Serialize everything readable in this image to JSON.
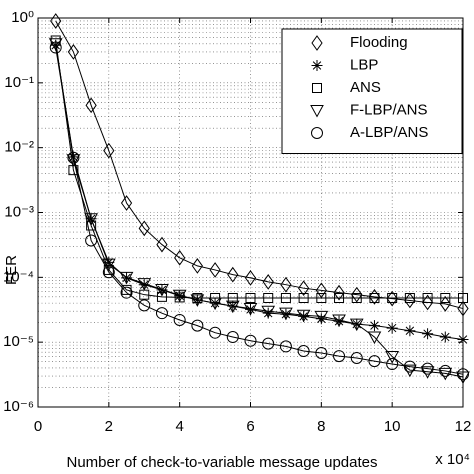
{
  "chart_data": {
    "type": "line",
    "x_label": "Number of check-to-variable message updates",
    "x_multiplier": "x 10⁴",
    "y_label": "FER",
    "x": [
      0.5,
      1,
      1.5,
      2,
      2.5,
      3,
      3.5,
      4,
      4.5,
      5,
      5.5,
      6,
      6.5,
      7,
      7.5,
      8,
      8.5,
      9,
      9.5,
      10,
      10.5,
      11,
      11.5,
      12
    ],
    "series": [
      {
        "name": "Flooding",
        "color": "#000000",
        "marker": "diamond",
        "values": [
          0.9,
          0.3,
          0.045,
          0.009,
          0.0014,
          0.00057,
          0.00032,
          0.0002,
          0.00015,
          0.00013,
          0.00011,
          9.8e-05,
          8.5e-05,
          7.7e-05,
          6.8e-05,
          6.3e-05,
          5.8e-05,
          5.4e-05,
          5e-05,
          4.7e-05,
          4.4e-05,
          4.1e-05,
          3.9e-05,
          3.3e-05
        ]
      },
      {
        "name": "LBP",
        "color": "#000000",
        "marker": "star",
        "values": [
          0.38,
          0.0072,
          0.0008,
          0.00017,
          9.8e-05,
          7.7e-05,
          6.4e-05,
          5.2e-05,
          4.5e-05,
          4e-05,
          3.6e-05,
          3.2e-05,
          2.8e-05,
          2.7e-05,
          2.5e-05,
          2.3e-05,
          2.1e-05,
          1.9e-05,
          1.8e-05,
          1.65e-05,
          1.5e-05,
          1.35e-05,
          1.2e-05,
          1.1e-05
        ]
      },
      {
        "name": "ANS",
        "color": "#000000",
        "marker": "square",
        "values": [
          0.45,
          0.0045,
          0.00063,
          0.00013,
          6.4e-05,
          5.4e-05,
          5e-05,
          4.9e-05,
          4.8e-05,
          4.8e-05,
          4.8e-05,
          4.8e-05,
          4.8e-05,
          4.8e-05,
          4.8e-05,
          4.8e-05,
          4.8e-05,
          4.8e-05,
          4.8e-05,
          4.8e-05,
          4.8e-05,
          4.8e-05,
          4.8e-05,
          4.8e-05
        ]
      },
      {
        "name": "F-LBP/ANS",
        "color": "#000000",
        "marker": "triangle-down",
        "values": [
          0.4,
          0.0065,
          0.0008,
          0.00016,
          0.0001,
          8e-05,
          6.5e-05,
          5.3e-05,
          4.5e-05,
          4e-05,
          3.6e-05,
          3.3e-05,
          3e-05,
          2.8e-05,
          2.6e-05,
          2.5e-05,
          2.2e-05,
          1.9e-05,
          1.2e-05,
          6e-06,
          3.7e-06,
          3.5e-06,
          3.3e-06,
          2.9e-06
        ]
      },
      {
        "name": "A-LBP/ANS",
        "color": "#000000",
        "marker": "circle",
        "values": [
          0.35,
          0.007,
          0.00037,
          0.00012,
          5.8e-05,
          3.7e-05,
          2.8e-05,
          2.2e-05,
          1.8e-05,
          1.4e-05,
          1.2e-05,
          1.05e-05,
          9.5e-06,
          8.6e-06,
          7.3e-06,
          6.8e-06,
          6.1e-06,
          5.7e-06,
          5.1e-06,
          4.6e-06,
          4.2e-06,
          3.9e-06,
          3.6e-06,
          3.2e-06
        ]
      }
    ],
    "xlim": [
      0,
      12
    ],
    "xticks": [
      0,
      2,
      4,
      6,
      8,
      10,
      12
    ],
    "ylim": [
      1e-06,
      1
    ],
    "yticks": [
      {
        "value": 1e-06,
        "label": "10⁻⁶"
      },
      {
        "value": 1e-05,
        "label": "10⁻⁵"
      },
      {
        "value": 0.0001,
        "label": "10⁻⁴"
      },
      {
        "value": 0.001,
        "label": "10⁻³"
      },
      {
        "value": 0.01,
        "label": "10⁻²"
      },
      {
        "value": 0.1,
        "label": "10⁻¹"
      },
      {
        "value": 1,
        "label": "10⁰"
      }
    ],
    "log_y": true,
    "grid": true,
    "minor_grid": true,
    "legend": "upper right"
  }
}
